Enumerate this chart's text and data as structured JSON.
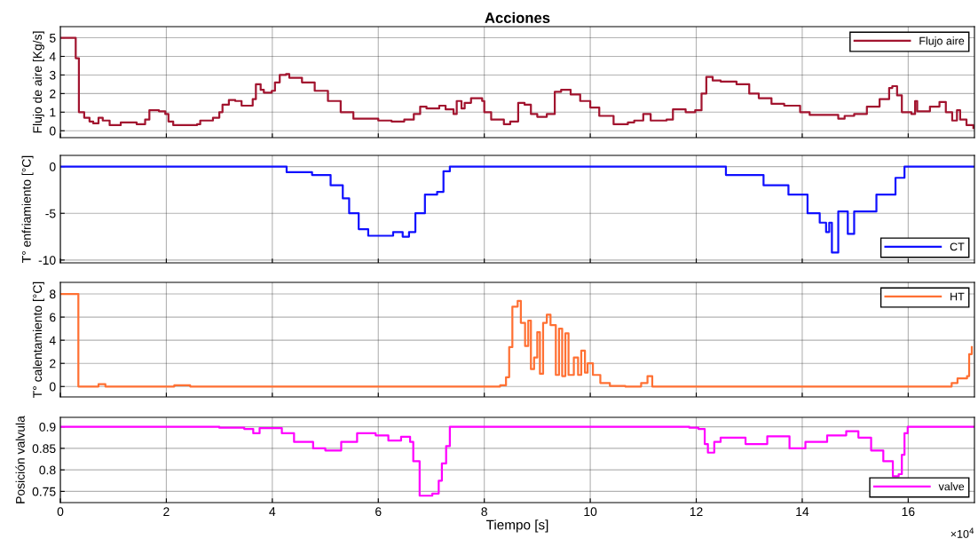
{
  "chart_data": [
    {
      "type": "step",
      "title": "Acciones",
      "ylabel": "Flujo de aire [Kg/s]",
      "xlim": [
        0,
        17.25
      ],
      "xticks": [
        0,
        2,
        4,
        6,
        8,
        10,
        12,
        14,
        16
      ],
      "ylim": [
        -0.37,
        5.6
      ],
      "yticks": [
        0,
        1,
        2,
        3,
        4,
        5
      ],
      "grid": true,
      "legend": "top right",
      "tick_labels": "y",
      "series": [
        {
          "name": "Flujo aire",
          "color": "#a2142f",
          "x": [
            0,
            0.29,
            0.35,
            0.45,
            0.55,
            0.62,
            0.72,
            0.8,
            0.93,
            1.14,
            1.44,
            1.6,
            1.68,
            1.86,
            1.98,
            2.04,
            2.13,
            2.58,
            2.64,
            2.88,
            3.0,
            3.06,
            3.18,
            3.3,
            3.42,
            3.54,
            3.63,
            3.69,
            3.78,
            3.84,
            3.99,
            4.05,
            4.14,
            4.26,
            4.32,
            4.56,
            4.8,
            5.05,
            5.29,
            5.53,
            6.0,
            6.25,
            6.49,
            6.67,
            6.79,
            6.91,
            7.15,
            7.27,
            7.42,
            7.48,
            7.57,
            7.63,
            7.75,
            7.96,
            8.0,
            8.13,
            8.37,
            8.49,
            8.64,
            8.76,
            8.88,
            9.0,
            9.18,
            9.33,
            9.45,
            9.63,
            9.81,
            10.0,
            10.17,
            10.44,
            10.71,
            10.83,
            11.0,
            11.14,
            11.44,
            11.56,
            11.8,
            11.98,
            12.1,
            12.19,
            12.31,
            12.46,
            12.76,
            13.0,
            13.18,
            13.42,
            13.66,
            13.96,
            14.14,
            14.68,
            14.8,
            14.98,
            15.22,
            15.46,
            15.64,
            15.7,
            15.79,
            15.88,
            16.06,
            16.13,
            16.17,
            16.41,
            16.59,
            16.71,
            16.83,
            16.92,
            16.98,
            17.1,
            17.23
          ],
          "values": [
            5,
            3.9,
            1.0,
            0.7,
            0.5,
            0.4,
            0.7,
            0.55,
            0.3,
            0.45,
            0.35,
            0.6,
            1.1,
            1.05,
            0.9,
            0.5,
            0.3,
            0.35,
            0.55,
            0.7,
            1.0,
            1.4,
            1.65,
            1.6,
            1.35,
            1.35,
            1.7,
            2.5,
            2.2,
            2.05,
            2.15,
            2.6,
            3.0,
            3.05,
            2.85,
            2.6,
            2.15,
            1.6,
            1.0,
            0.65,
            0.55,
            0.5,
            0.6,
            0.9,
            1.3,
            1.2,
            1.35,
            1.15,
            0.9,
            1.6,
            1.2,
            1.5,
            1.75,
            1.6,
            1.0,
            0.6,
            0.35,
            0.5,
            1.5,
            1.4,
            0.9,
            0.75,
            0.9,
            2.1,
            2.2,
            1.95,
            1.6,
            1.25,
            0.8,
            0.35,
            0.45,
            0.55,
            0.9,
            0.55,
            0.6,
            1.15,
            1.0,
            1.1,
            2.0,
            2.9,
            2.7,
            2.65,
            2.5,
            2.0,
            1.75,
            1.45,
            1.35,
            1.0,
            0.85,
            0.65,
            0.8,
            0.9,
            1.3,
            1.7,
            2.3,
            2.4,
            1.9,
            1.0,
            0.9,
            1.6,
            1.05,
            1.3,
            1.55,
            1.0,
            0.55,
            1.1,
            0.6,
            0.3,
            0.15
          ]
        }
      ]
    },
    {
      "type": "step",
      "ylabel": "T° enfriamiento [°C]",
      "xlim": [
        0,
        17.25
      ],
      "xticks": [
        0,
        2,
        4,
        6,
        8,
        10,
        12,
        14,
        16
      ],
      "ylim": [
        -10.3,
        1.2
      ],
      "yticks": [
        -10,
        -5,
        0
      ],
      "grid": true,
      "legend": "bottom right",
      "tick_labels": "y",
      "series": [
        {
          "name": "CT",
          "color": "#1010ff",
          "x": [
            0,
            4.0,
            4.27,
            4.75,
            5.1,
            5.33,
            5.45,
            5.63,
            5.81,
            6.17,
            6.28,
            6.46,
            6.58,
            6.7,
            6.88,
            7.11,
            7.23,
            7.35,
            12.08,
            12.56,
            13.27,
            13.74,
            14.1,
            14.33,
            14.45,
            14.51,
            14.56,
            14.68,
            14.86,
            14.98,
            15.4,
            15.76,
            15.93,
            17.25
          ],
          "values": [
            0,
            0,
            -0.6,
            -0.9,
            -2.0,
            -3.4,
            -5.0,
            -6.7,
            -7.4,
            -7.4,
            -7.0,
            -7.5,
            -7.0,
            -5.0,
            -3.0,
            -2.7,
            -0.5,
            0,
            0,
            -0.9,
            -2.0,
            -3.0,
            -5.0,
            -6.0,
            -7.0,
            -6.0,
            -9.2,
            -4.8,
            -7.2,
            -4.8,
            -3.0,
            -1.2,
            0,
            0
          ]
        }
      ]
    },
    {
      "type": "step",
      "ylabel": "T° calentamiento [°C]",
      "xlim": [
        0,
        17.25
      ],
      "xticks": [
        0,
        2,
        4,
        6,
        8,
        10,
        12,
        14,
        16
      ],
      "ylim": [
        -0.9,
        9
      ],
      "yticks": [
        0,
        2,
        4,
        6,
        8
      ],
      "grid": true,
      "legend": "top right",
      "tick_labels": "y",
      "series": [
        {
          "name": "HT",
          "color": "#ff7033",
          "x": [
            0,
            0.34,
            0.72,
            0.85,
            2.15,
            2.45,
            8.3,
            8.41,
            8.47,
            8.53,
            8.63,
            8.69,
            8.77,
            8.83,
            8.88,
            8.94,
            9.0,
            9.05,
            9.11,
            9.18,
            9.25,
            9.35,
            9.41,
            9.47,
            9.53,
            9.59,
            9.69,
            9.77,
            9.83,
            9.9,
            9.95,
            10.05,
            10.19,
            10.37,
            10.66,
            10.96,
            11.08,
            11.17,
            16.82,
            16.93,
            17.11,
            17.15,
            17.2
          ],
          "values": [
            8,
            0,
            0.2,
            0,
            0.1,
            0,
            0.1,
            0.8,
            3.4,
            6.9,
            7.4,
            5.5,
            3.5,
            5.7,
            1.5,
            2.5,
            4.7,
            1.1,
            5.5,
            6.2,
            5.3,
            1.0,
            5.0,
            0.9,
            4.6,
            1.0,
            2.5,
            1.0,
            3.1,
            1.2,
            2.0,
            1.0,
            0.3,
            0.05,
            0,
            0.3,
            0.9,
            0,
            0.3,
            0.7,
            0.9,
            2.8,
            3.4
          ]
        }
      ]
    },
    {
      "type": "step",
      "xlabel": "Tiempo [s]",
      "ylabel": "Posición valvula",
      "xlim": [
        0,
        17.25
      ],
      "xticks": [
        0,
        2,
        4,
        6,
        8,
        10,
        12,
        14,
        16
      ],
      "ylim": [
        0.724,
        0.922
      ],
      "yticks": [
        {
          "value": 0.75,
          "label": "0.75"
        },
        {
          "value": 0.8,
          "label": "0.8"
        },
        {
          "value": 0.85,
          "label": "0.85"
        },
        {
          "value": 0.9,
          "label": "0.9"
        }
      ],
      "grid": true,
      "legend": "bottom right",
      "annotations": [
        "×10$^{4}$"
      ],
      "series": [
        {
          "name": "valve",
          "color": "#ff00ff",
          "x": [
            0,
            3.0,
            3.47,
            3.64,
            3.76,
            4.18,
            4.41,
            4.77,
            5.0,
            5.3,
            5.6,
            5.95,
            6.19,
            6.43,
            6.6,
            6.66,
            6.78,
            7.02,
            7.14,
            7.2,
            7.28,
            7.35,
            11.87,
            12.04,
            12.16,
            12.22,
            12.34,
            12.46,
            12.93,
            13.34,
            13.76,
            14.06,
            14.47,
            14.83,
            15.06,
            15.3,
            15.53,
            15.71,
            15.82,
            15.88,
            15.93,
            15.99,
            17.25
          ],
          "values": [
            0.9,
            0.898,
            0.895,
            0.885,
            0.897,
            0.885,
            0.865,
            0.85,
            0.845,
            0.865,
            0.885,
            0.88,
            0.868,
            0.877,
            0.865,
            0.82,
            0.74,
            0.745,
            0.775,
            0.815,
            0.855,
            0.9,
            0.898,
            0.895,
            0.86,
            0.84,
            0.865,
            0.875,
            0.86,
            0.878,
            0.85,
            0.865,
            0.88,
            0.89,
            0.875,
            0.845,
            0.82,
            0.785,
            0.79,
            0.835,
            0.885,
            0.9,
            0.9
          ]
        }
      ]
    }
  ]
}
